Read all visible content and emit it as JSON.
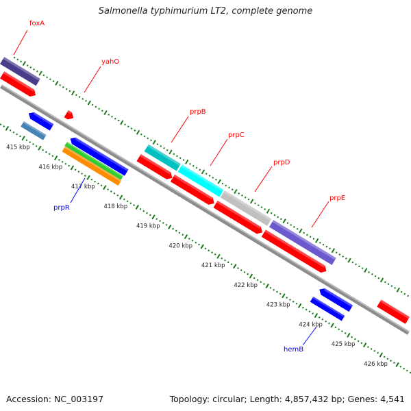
{
  "title": "Salmonella typhimurium LT2, complete genome",
  "footer": {
    "accession": "Accession: NC_003197",
    "topology": "Topology: circular; Length: 4,857,432 bp; Genes: 4,541"
  },
  "colors": {
    "backbone": "#8c8c8c",
    "ticks": "#1a7a1a",
    "forward_label": "#ff0000",
    "reverse_label": "#0000ff"
  },
  "ruler": {
    "unit": "kbp",
    "labels": [
      "415 kbp",
      "416 kbp",
      "417 kbp",
      "418 kbp",
      "419 kbp",
      "420 kbp",
      "421 kbp",
      "422 kbp",
      "423 kbp",
      "424 kbp",
      "425 kbp",
      "426 kbp"
    ],
    "label_positions_kbp": [
      415,
      416,
      417,
      418,
      419,
      420,
      421,
      422,
      423,
      424,
      425,
      426
    ],
    "range_kbp": [
      413.7,
      428.3
    ]
  },
  "features": [
    {
      "track": "cog",
      "start": 412.5,
      "end": 414.57,
      "color": "#483d8b",
      "strand": "none"
    },
    {
      "track": "forward",
      "start": 412.5,
      "end": 414.69,
      "color": "#ff0000",
      "strand": "forward"
    },
    {
      "track": "forward",
      "start": 415.63,
      "end": 415.85,
      "color": "#ff0000",
      "strand": "forward"
    },
    {
      "track": "reverse",
      "start": 414.78,
      "end": 415.49,
      "color": "#0000ff",
      "strand": "reverse"
    },
    {
      "track": "reverse_cog2",
      "start": 414.78,
      "end": 415.47,
      "color": "#4682b4",
      "strand": "none"
    },
    {
      "track": "reverse",
      "start": 416.06,
      "end": 417.79,
      "color": "#0000ff",
      "strand": "reverse"
    },
    {
      "track": "reverse_cog1",
      "start": 416.03,
      "end": 417.76,
      "color": "#32cd32",
      "strand": "none"
    },
    {
      "track": "reverse_cog2",
      "start": 416.05,
      "end": 417.78,
      "color": "#ff8c00",
      "strand": "none"
    },
    {
      "track": "cog",
      "start": 417.9,
      "end": 418.89,
      "color": "#00c0c0",
      "strand": "none"
    },
    {
      "track": "forward",
      "start": 417.86,
      "end": 418.89,
      "color": "#ff0000",
      "strand": "forward"
    },
    {
      "track": "cog",
      "start": 418.93,
      "end": 420.21,
      "color": "#00ffff",
      "strand": "none"
    },
    {
      "track": "forward",
      "start": 418.9,
      "end": 420.18,
      "color": "#ff0000",
      "strand": "forward"
    },
    {
      "track": "cog",
      "start": 420.24,
      "end": 421.68,
      "color": "#c0c0c0",
      "strand": "none"
    },
    {
      "track": "forward",
      "start": 420.22,
      "end": 421.66,
      "color": "#ff0000",
      "strand": "forward"
    },
    {
      "track": "cog",
      "start": 421.74,
      "end": 423.67,
      "color": "#6a5acd",
      "strand": "none"
    },
    {
      "track": "forward",
      "start": 421.7,
      "end": 423.63,
      "color": "#ff0000",
      "strand": "forward"
    },
    {
      "track": "forward",
      "start": 425.25,
      "end": 428.5,
      "color": "#ff0000",
      "strand": "forward"
    },
    {
      "track": "reverse",
      "start": 423.72,
      "end": 424.69,
      "color": "#0000ff",
      "strand": "reverse"
    },
    {
      "track": "reverse_cog2",
      "start": 423.68,
      "end": 424.65,
      "color": "#0000ff",
      "strand": "none"
    }
  ],
  "gene_labels": [
    {
      "name": "foxA",
      "strand": "forward"
    },
    {
      "name": "yahO",
      "strand": "forward"
    },
    {
      "name": "prpB",
      "strand": "forward"
    },
    {
      "name": "prpC",
      "strand": "forward"
    },
    {
      "name": "prpD",
      "strand": "forward"
    },
    {
      "name": "prpE",
      "strand": "forward"
    },
    {
      "name": "prpR",
      "strand": "reverse"
    },
    {
      "name": "hemB",
      "strand": "reverse"
    }
  ]
}
